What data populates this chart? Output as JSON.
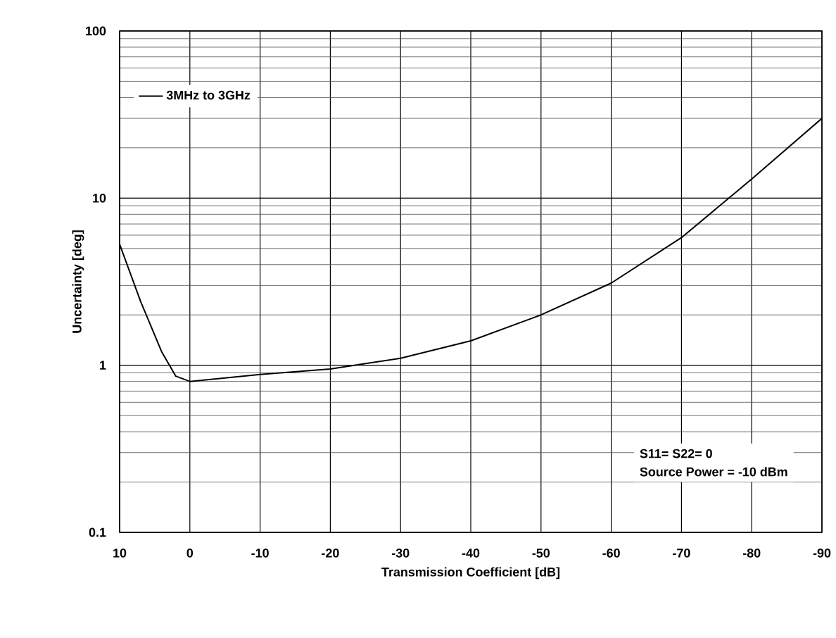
{
  "chart_data": {
    "type": "line",
    "xlabel": "Transmission Coefficient [dB]",
    "ylabel": "Uncertainty [deg]",
    "x": [
      10,
      7,
      4,
      2,
      0,
      -10,
      -20,
      -30,
      -40,
      -50,
      -60,
      -70,
      -80,
      -90
    ],
    "series": [
      {
        "name": "3MHz to 3GHz",
        "color": "#000000",
        "values": [
          5.3,
          2.4,
          1.2,
          0.86,
          0.8,
          0.88,
          0.95,
          1.1,
          1.4,
          2.0,
          3.1,
          5.8,
          13,
          30
        ]
      }
    ],
    "xlim": [
      10,
      -90
    ],
    "xticks": [
      10,
      0,
      -10,
      -20,
      -30,
      -40,
      -50,
      -60,
      -70,
      -80,
      -90
    ],
    "ylim": [
      0.1,
      100
    ],
    "yticks": [
      0.1,
      1,
      10,
      100
    ],
    "log": "y",
    "grid": true,
    "legend": "top left",
    "marker": "none",
    "line_style": "solid",
    "annotations": [
      "S11= S22= 0",
      "Source Power = -10 dBm"
    ]
  }
}
